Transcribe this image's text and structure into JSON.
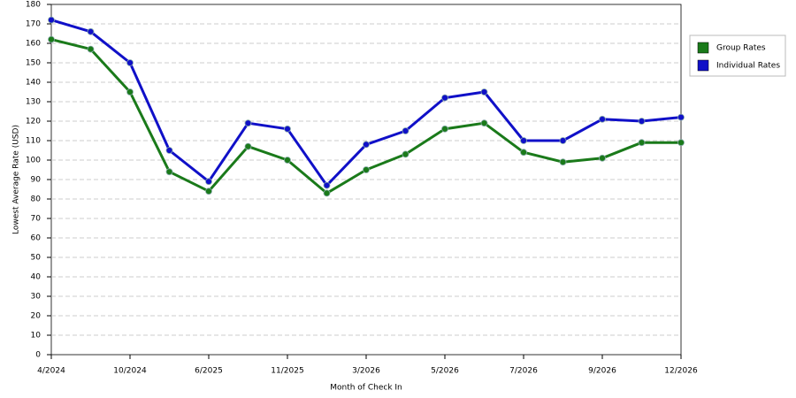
{
  "chart_data": {
    "type": "line",
    "x_label": "Month of Check In",
    "y_label": "Lowest Average Rate (USD)",
    "categories": [
      "4/2024",
      null,
      "10/2024",
      null,
      "6/2025",
      null,
      "11/2025",
      null,
      "3/2026",
      null,
      "5/2026",
      null,
      "7/2026",
      null,
      "9/2026",
      null,
      "12/2026"
    ],
    "series": [
      {
        "name": "Group Rates",
        "color": "#1a7a1a",
        "values": [
          162,
          157,
          135,
          94,
          84,
          107,
          100,
          83,
          95,
          103,
          116,
          119,
          104,
          99,
          101,
          109,
          109
        ]
      },
      {
        "name": "Individual Rates",
        "color": "#1010c8",
        "values": [
          172,
          166,
          150,
          105,
          89,
          119,
          116,
          87,
          108,
          115,
          132,
          135,
          110,
          110,
          121,
          120,
          122
        ]
      }
    ],
    "ylim": [
      0,
      180
    ],
    "yticks": [
      0,
      10,
      20,
      30,
      40,
      50,
      60,
      70,
      80,
      90,
      100,
      110,
      120,
      130,
      140,
      150,
      160,
      170,
      180
    ],
    "grid": true,
    "legend": "right"
  }
}
